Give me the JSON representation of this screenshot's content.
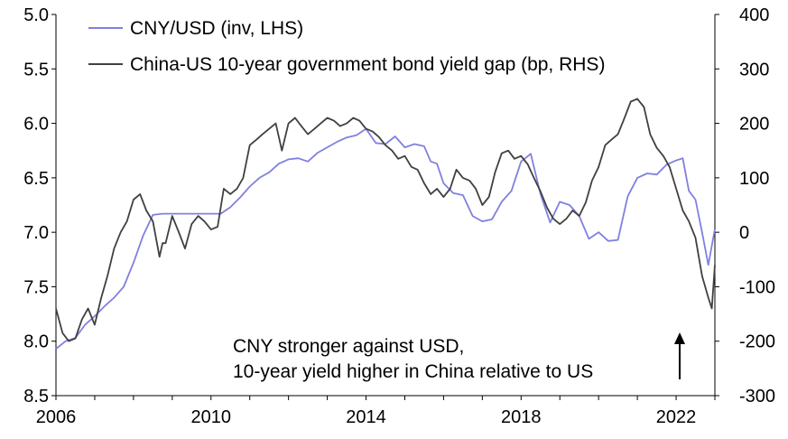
{
  "chart_data": {
    "type": "line",
    "x_ticks": [
      2006,
      2010,
      2014,
      2018,
      2022
    ],
    "xlim": [
      2006,
      2023
    ],
    "y_left": {
      "lim": [
        5.0,
        8.5
      ],
      "inverted": true,
      "ticks": [
        "5.0",
        "5.5",
        "6.0",
        "6.5",
        "7.0",
        "7.5",
        "8.0",
        "8.5"
      ],
      "tick_values": [
        5.0,
        5.5,
        6.0,
        6.5,
        7.0,
        7.5,
        8.0,
        8.5
      ]
    },
    "y_right": {
      "lim": [
        -300,
        400
      ],
      "ticks": [
        "400",
        "300",
        "200",
        "100",
        "0",
        "-100",
        "-200",
        "-300"
      ],
      "tick_values": [
        400,
        300,
        200,
        100,
        0,
        -100,
        -200,
        -300
      ]
    },
    "legend": {
      "placement": "top-left"
    },
    "grid": false,
    "colors": {
      "cny": "#8080e0",
      "gap": "#404040"
    },
    "series": [
      {
        "name": "CNY/USD (inv, LHS)",
        "axis": "left",
        "x": [
          2006.0,
          2006.25,
          2006.5,
          2006.75,
          2007.0,
          2007.25,
          2007.5,
          2007.75,
          2008.0,
          2008.25,
          2008.5,
          2008.75,
          2009.0,
          2009.5,
          2010.0,
          2010.25,
          2010.5,
          2010.75,
          2011.0,
          2011.25,
          2011.5,
          2011.75,
          2012.0,
          2012.25,
          2012.5,
          2012.75,
          2013.0,
          2013.25,
          2013.5,
          2013.75,
          2014.0,
          2014.25,
          2014.5,
          2014.75,
          2015.0,
          2015.25,
          2015.5,
          2015.67,
          2015.83,
          2016.0,
          2016.25,
          2016.5,
          2016.75,
          2017.0,
          2017.25,
          2017.5,
          2017.75,
          2018.0,
          2018.25,
          2018.5,
          2018.75,
          2019.0,
          2019.25,
          2019.5,
          2019.75,
          2020.0,
          2020.25,
          2020.5,
          2020.75,
          2021.0,
          2021.25,
          2021.5,
          2021.75,
          2022.0,
          2022.17,
          2022.33,
          2022.5,
          2022.67,
          2022.83,
          2023.0
        ],
        "values": [
          8.07,
          8.0,
          7.97,
          7.85,
          7.77,
          7.68,
          7.6,
          7.5,
          7.28,
          7.03,
          6.84,
          6.83,
          6.83,
          6.83,
          6.83,
          6.83,
          6.77,
          6.68,
          6.58,
          6.5,
          6.45,
          6.37,
          6.33,
          6.32,
          6.35,
          6.27,
          6.22,
          6.17,
          6.13,
          6.11,
          6.05,
          6.18,
          6.19,
          6.12,
          6.22,
          6.19,
          6.21,
          6.35,
          6.37,
          6.55,
          6.64,
          6.66,
          6.85,
          6.9,
          6.88,
          6.72,
          6.62,
          6.35,
          6.28,
          6.65,
          6.91,
          6.72,
          6.75,
          6.85,
          7.06,
          7.0,
          7.08,
          7.07,
          6.67,
          6.5,
          6.46,
          6.47,
          6.38,
          6.34,
          6.32,
          6.62,
          6.7,
          7.0,
          7.3,
          6.97
        ]
      },
      {
        "name": "China-US 10-year government bond yield gap (bp, RHS)",
        "axis": "right",
        "x": [
          2006.0,
          2006.17,
          2006.33,
          2006.5,
          2006.67,
          2006.83,
          2007.0,
          2007.17,
          2007.33,
          2007.5,
          2007.67,
          2007.83,
          2008.0,
          2008.17,
          2008.33,
          2008.5,
          2008.67,
          2008.75,
          2008.83,
          2009.0,
          2009.17,
          2009.33,
          2009.5,
          2009.67,
          2009.83,
          2010.0,
          2010.17,
          2010.33,
          2010.5,
          2010.67,
          2010.83,
          2011.0,
          2011.17,
          2011.33,
          2011.5,
          2011.67,
          2011.83,
          2012.0,
          2012.17,
          2012.33,
          2012.5,
          2012.67,
          2012.83,
          2013.0,
          2013.17,
          2013.33,
          2013.5,
          2013.67,
          2013.83,
          2014.0,
          2014.17,
          2014.33,
          2014.5,
          2014.67,
          2014.83,
          2015.0,
          2015.17,
          2015.33,
          2015.5,
          2015.67,
          2015.83,
          2016.0,
          2016.17,
          2016.33,
          2016.5,
          2016.67,
          2016.83,
          2017.0,
          2017.17,
          2017.33,
          2017.5,
          2017.67,
          2017.83,
          2018.0,
          2018.17,
          2018.33,
          2018.5,
          2018.67,
          2018.83,
          2019.0,
          2019.17,
          2019.33,
          2019.5,
          2019.67,
          2019.83,
          2020.0,
          2020.17,
          2020.33,
          2020.5,
          2020.67,
          2020.83,
          2021.0,
          2021.17,
          2021.33,
          2021.5,
          2021.67,
          2021.83,
          2022.0,
          2022.17,
          2022.33,
          2022.5,
          2022.67,
          2022.83,
          2022.92,
          2023.0
        ],
        "values": [
          -140,
          -185,
          -200,
          -195,
          -160,
          -140,
          -170,
          -120,
          -80,
          -30,
          0,
          20,
          60,
          70,
          40,
          20,
          -45,
          -20,
          -20,
          30,
          0,
          -30,
          15,
          30,
          20,
          5,
          10,
          80,
          70,
          80,
          100,
          160,
          170,
          180,
          190,
          200,
          150,
          200,
          210,
          195,
          180,
          190,
          200,
          210,
          205,
          195,
          200,
          210,
          205,
          190,
          185,
          175,
          160,
          150,
          135,
          140,
          120,
          115,
          90,
          70,
          80,
          65,
          80,
          115,
          100,
          95,
          80,
          50,
          65,
          110,
          145,
          150,
          135,
          140,
          125,
          100,
          75,
          45,
          25,
          15,
          25,
          40,
          30,
          55,
          95,
          120,
          160,
          170,
          180,
          210,
          240,
          245,
          230,
          180,
          155,
          140,
          120,
          80,
          40,
          20,
          -10,
          -80,
          -120,
          -140,
          -60
        ]
      }
    ],
    "annotation": {
      "lines": [
        "CNY stronger against USD,",
        "10-year yield higher in China relative to US"
      ]
    }
  }
}
